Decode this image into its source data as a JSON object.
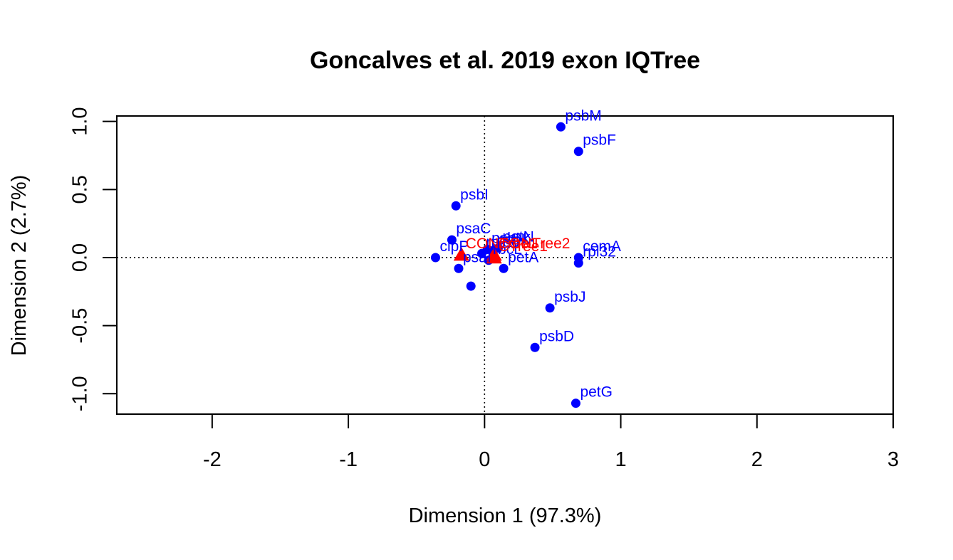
{
  "chart_data": {
    "type": "scatter",
    "title": "Goncalves et al. 2019 exon IQTree",
    "xlabel": "Dimension 1 (97.3%)",
    "ylabel": "Dimension 2 (2.7%)",
    "xlim": [
      -2.7,
      3.0
    ],
    "ylim": [
      -1.15,
      1.04
    ],
    "x_ticks": [
      -2,
      -1,
      0,
      1,
      2,
      3
    ],
    "x_tick_labels": [
      "-2",
      "-1",
      "0",
      "1",
      "2",
      "3"
    ],
    "y_ticks": [
      -1.0,
      -0.5,
      0.0,
      0.5,
      1.0
    ],
    "y_tick_labels": [
      "-1.0",
      "-0.5",
      "0.0",
      "0.5",
      "1.0"
    ],
    "reference_lines": {
      "x": 0,
      "y": 0,
      "style": "dotted"
    },
    "grid": false,
    "colors": {
      "genes": "#0000ff",
      "trees": "#ff0000",
      "axes": "#000000"
    },
    "series": [
      {
        "name": "",
        "marker": "circle",
        "color": "#0000ff",
        "points": [
          {
            "label": "psbM",
            "x": 0.56,
            "y": 0.96
          },
          {
            "label": "psbF",
            "x": 0.69,
            "y": 0.78
          },
          {
            "label": "psbI",
            "x": -0.21,
            "y": 0.38
          },
          {
            "label": "psaC",
            "x": -0.24,
            "y": 0.13
          },
          {
            "label": "petN",
            "x": 0.1,
            "y": 0.07
          },
          {
            "label": "psbN",
            "x": 0.02,
            "y": 0.06
          },
          {
            "label": "psbK",
            "x": 0.06,
            "y": 0.05
          },
          {
            "label": "rpl36",
            "x": -0.02,
            "y": 0.03
          },
          {
            "label": "cemA",
            "x": 0.69,
            "y": 0.0
          },
          {
            "label": "rpl32",
            "x": 0.69,
            "y": -0.04
          },
          {
            "label": "clpP",
            "x": -0.36,
            "y": 0.0
          },
          {
            "label": "rbcL",
            "x": 0.03,
            "y": -0.02
          },
          {
            "label": "petA",
            "x": 0.14,
            "y": -0.08
          },
          {
            "label": "psaI",
            "x": -0.19,
            "y": -0.08
          },
          {
            "label": "",
            "x": -0.1,
            "y": -0.21
          },
          {
            "label": "psbJ",
            "x": 0.48,
            "y": -0.37
          },
          {
            "label": "psbD",
            "x": 0.37,
            "y": -0.66
          },
          {
            "label": "petG",
            "x": 0.67,
            "y": -1.07
          }
        ]
      },
      {
        "name": "",
        "marker": "triangle",
        "color": "#ff0000",
        "points": [
          {
            "label": "CONTree2",
            "x": 0.07,
            "y": 0.02
          },
          {
            "label": "CONTree1",
            "x": -0.17,
            "y": 0.02
          },
          {
            "label": "CTree1",
            "x": 0.07,
            "y": 0.0
          }
        ]
      }
    ]
  }
}
